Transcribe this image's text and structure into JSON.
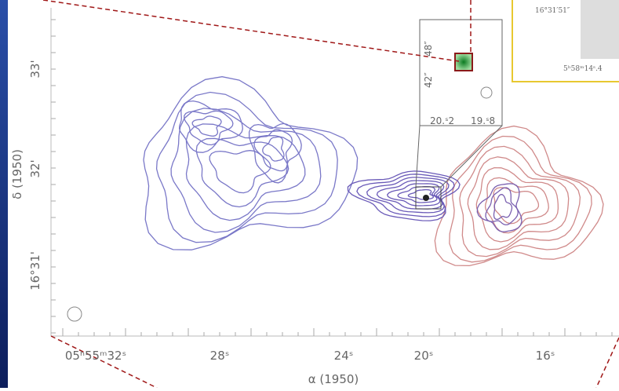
{
  "axes": {
    "y_label": "δ (1950)",
    "y_ticks": [
      "33'",
      "32'",
      "16°31'"
    ],
    "x_label": "α (1950)",
    "x_ticks": [
      "05ʰ55ᵐ32ˢ",
      "28ˢ",
      "24ˢ",
      "20ˢ",
      "16ˢ"
    ]
  },
  "zoom_inset": {
    "x_ticks": [
      "20.ˢ2",
      "19.ˢ8"
    ],
    "y_ticks": [
      "42″",
      "48″"
    ]
  },
  "corner_inset": {
    "y_label": "16°31′51″",
    "x_label": "5ʰ58ᵐ14ˢ.4"
  }
}
